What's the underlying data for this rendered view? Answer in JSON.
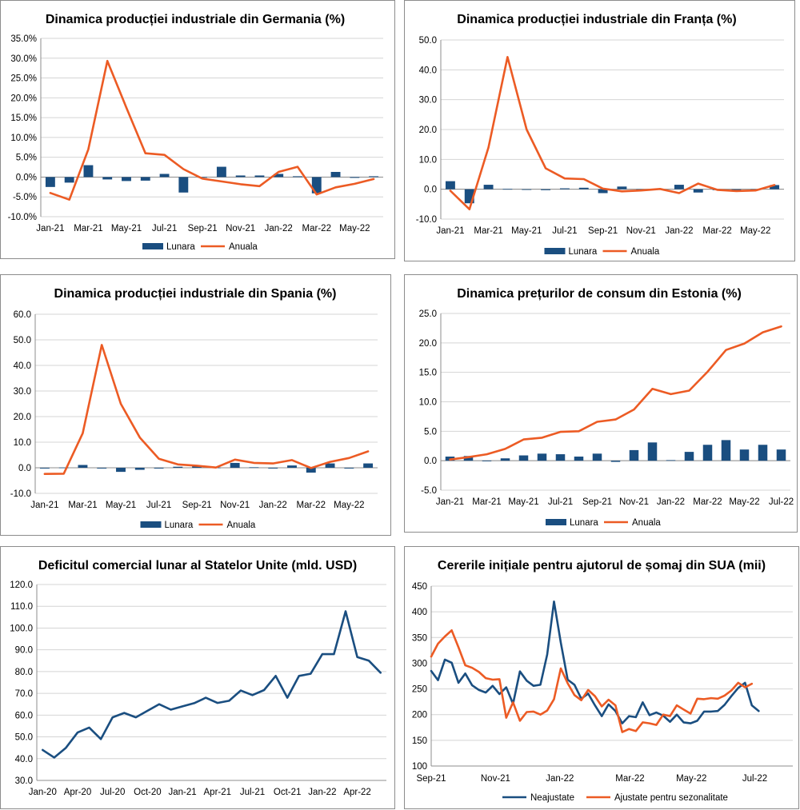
{
  "colors": {
    "lunara": "#1a4e80",
    "anuala": "#ec5b24",
    "grid": "#d4d4d4",
    "axis": "#8c8c8c",
    "text": "#000000"
  },
  "chart_data": [
    {
      "id": "germany",
      "type": "bar+line",
      "title": "Dinamica producției industriale din Germania (%)",
      "categories": [
        "Jan-21",
        "Feb-21",
        "Mar-21",
        "Apr-21",
        "May-21",
        "Jun-21",
        "Jul-21",
        "Aug-21",
        "Sep-21",
        "Oct-21",
        "Nov-21",
        "Dec-21",
        "Jan-22",
        "Feb-22",
        "Mar-22",
        "Apr-22",
        "May-22",
        "Jun-22"
      ],
      "xtick_labels": [
        "Jan-21",
        "",
        "Mar-21",
        "",
        "May-21",
        "",
        "Jul-21",
        "",
        "Sep-21",
        "",
        "Nov-21",
        "",
        "Jan-22",
        "",
        "Mar-22",
        "",
        "May-22",
        ""
      ],
      "series": [
        {
          "name": "Lunara",
          "kind": "bar",
          "values": [
            -2.5,
            -1.4,
            3.0,
            -0.6,
            -1.0,
            -0.9,
            0.8,
            -3.9,
            -0.1,
            2.6,
            0.4,
            0.4,
            0.8,
            0.2,
            -4.1,
            1.3,
            -0.2,
            0.2
          ]
        },
        {
          "name": "Anuala",
          "kind": "line",
          "values": [
            -4.0,
            -5.7,
            7.0,
            29.3,
            17.5,
            6.0,
            5.6,
            2.0,
            -0.4,
            -1.1,
            -1.8,
            -2.3,
            1.3,
            2.6,
            -4.4,
            -2.6,
            -1.7,
            -0.5
          ]
        }
      ],
      "ylim": [
        -10,
        35
      ],
      "yticks": [
        -10,
        -5,
        0,
        5,
        10,
        15,
        20,
        25,
        30,
        35
      ],
      "ytick_labels": [
        "-10.0%",
        "-5.0%",
        "0.0%",
        "5.0%",
        "10.0%",
        "15.0%",
        "20.0%",
        "25.0%",
        "30.0%",
        "35.0%"
      ],
      "legend": [
        "Lunara",
        "Anuala"
      ]
    },
    {
      "id": "france",
      "type": "bar+line",
      "title": "Dinamica producției industriale din Franța (%)",
      "categories": [
        "Jan-21",
        "Feb-21",
        "Mar-21",
        "Apr-21",
        "May-21",
        "Jun-21",
        "Jul-21",
        "Aug-21",
        "Sep-21",
        "Oct-21",
        "Nov-21",
        "Dec-21",
        "Jan-22",
        "Feb-22",
        "Mar-22",
        "Apr-22",
        "May-22",
        "Jun-22"
      ],
      "xtick_labels": [
        "Jan-21",
        "",
        "Mar-21",
        "",
        "May-21",
        "",
        "Jul-21",
        "",
        "Sep-21",
        "",
        "Nov-21",
        "",
        "Jan-22",
        "",
        "Mar-22",
        "",
        "May-22",
        ""
      ],
      "series": [
        {
          "name": "Lunara",
          "kind": "bar",
          "values": [
            2.7,
            -4.7,
            1.5,
            0.1,
            -0.1,
            -0.3,
            0.3,
            0.5,
            -1.3,
            0.9,
            -0.4,
            -0.1,
            1.5,
            -1.1,
            -0.3,
            -0.3,
            -0.2,
            1.4
          ]
        },
        {
          "name": "Anuala",
          "kind": "line",
          "values": [
            -0.5,
            -6.7,
            14.0,
            44.3,
            20.0,
            7.0,
            3.6,
            3.4,
            0.2,
            -0.7,
            -0.4,
            0.1,
            -1.3,
            1.9,
            -0.2,
            -0.6,
            -0.4,
            1.4
          ]
        }
      ],
      "ylim": [
        -10,
        50
      ],
      "yticks": [
        -10,
        0,
        10,
        20,
        30,
        40,
        50
      ],
      "ytick_labels": [
        "-10.0",
        "0.0",
        "10.0",
        "20.0",
        "30.0",
        "40.0",
        "50.0"
      ],
      "legend": [
        "Lunara",
        "Anuala"
      ]
    },
    {
      "id": "spain",
      "type": "bar+line",
      "title": "Dinamica producției industriale din Spania (%)",
      "categories": [
        "Jan-21",
        "Feb-21",
        "Mar-21",
        "Apr-21",
        "May-21",
        "Jun-21",
        "Jul-21",
        "Aug-21",
        "Sep-21",
        "Oct-21",
        "Nov-21",
        "Dec-21",
        "Jan-22",
        "Feb-22",
        "Mar-22",
        "Apr-22",
        "May-22",
        "Jun-22"
      ],
      "xtick_labels": [
        "Jan-21",
        "",
        "Mar-21",
        "",
        "May-21",
        "",
        "Jul-21",
        "",
        "Sep-21",
        "",
        "Nov-21",
        "",
        "Jan-22",
        "",
        "Mar-22",
        "",
        "May-22",
        ""
      ],
      "series": [
        {
          "name": "Lunara",
          "kind": "bar",
          "values": [
            -0.3,
            0.1,
            1.1,
            -0.3,
            -1.6,
            -0.8,
            -0.3,
            0.4,
            0.7,
            0.1,
            1.9,
            0.2,
            -0.3,
            0.9,
            -1.9,
            1.7,
            -0.3,
            1.7
          ]
        },
        {
          "name": "Anuala",
          "kind": "line",
          "values": [
            -2.4,
            -2.3,
            13.5,
            48.0,
            25.0,
            11.8,
            3.5,
            1.3,
            0.8,
            0.1,
            3.2,
            1.9,
            1.7,
            3.0,
            -0.1,
            2.3,
            3.8,
            6.4
          ]
        }
      ],
      "ylim": [
        -10,
        60
      ],
      "yticks": [
        -10,
        0,
        10,
        20,
        30,
        40,
        50,
        60
      ],
      "ytick_labels": [
        "-10.0",
        "0.0",
        "10.0",
        "20.0",
        "30.0",
        "40.0",
        "50.0",
        "60.0"
      ],
      "legend": [
        "Lunara",
        "Anuala"
      ]
    },
    {
      "id": "estonia",
      "type": "bar+line",
      "title": "Dinamica prețurilor de consum din Estonia (%)",
      "categories": [
        "Jan-21",
        "Feb-21",
        "Mar-21",
        "Apr-21",
        "May-21",
        "Jun-21",
        "Jul-21",
        "Aug-21",
        "Sep-21",
        "Oct-21",
        "Nov-21",
        "Dec-21",
        "Jan-22",
        "Feb-22",
        "Mar-22",
        "Apr-22",
        "May-22",
        "Jun-22",
        "Jul-22"
      ],
      "xtick_labels": [
        "Jan-21",
        "",
        "Mar-21",
        "",
        "May-21",
        "",
        "Jul-21",
        "",
        "Sep-21",
        "",
        "Nov-21",
        "",
        "Jan-22",
        "",
        "Mar-22",
        "",
        "May-22",
        "",
        "Jul-22"
      ],
      "series": [
        {
          "name": "Lunara",
          "kind": "bar",
          "values": [
            0.7,
            0.8,
            -0.1,
            0.4,
            0.9,
            1.2,
            1.1,
            0.7,
            1.2,
            -0.2,
            1.8,
            3.1,
            0.1,
            1.5,
            2.7,
            3.5,
            1.9,
            2.7,
            1.9
          ]
        },
        {
          "name": "Anuala",
          "kind": "line",
          "values": [
            0.2,
            0.6,
            1.1,
            2.0,
            3.6,
            3.9,
            4.9,
            5.0,
            6.6,
            7.0,
            8.7,
            12.2,
            11.3,
            11.9,
            15.1,
            18.8,
            19.9,
            21.8,
            22.8
          ]
        }
      ],
      "ylim": [
        -5,
        25
      ],
      "yticks": [
        -5,
        0,
        5,
        10,
        15,
        20,
        25
      ],
      "ytick_labels": [
        "-5.0",
        "0.0",
        "5.0",
        "10.0",
        "15.0",
        "20.0",
        "25.0"
      ],
      "legend": [
        "Lunara",
        "Anuala"
      ]
    },
    {
      "id": "us-trade",
      "type": "line",
      "title": "Deficitul comercial lunar al Statelor Unite (mld. USD)",
      "categories": [
        "Jan-20",
        "Feb-20",
        "Mar-20",
        "Apr-20",
        "May-20",
        "Jun-20",
        "Jul-20",
        "Aug-20",
        "Sep-20",
        "Oct-20",
        "Nov-20",
        "Dec-20",
        "Jan-21",
        "Feb-21",
        "Mar-21",
        "Apr-21",
        "May-21",
        "Jun-21",
        "Jul-21",
        "Aug-21",
        "Sep-21",
        "Oct-21",
        "Nov-21",
        "Dec-21",
        "Jan-22",
        "Feb-22",
        "Mar-22",
        "Apr-22",
        "May-22",
        "Jun-22"
      ],
      "xtick_labels": [
        "Jan-20",
        "",
        "",
        "Apr-20",
        "",
        "",
        "Jul-20",
        "",
        "",
        "Oct-20",
        "",
        "",
        "Jan-21",
        "",
        "",
        "Apr-21",
        "",
        "",
        "Jul-21",
        "",
        "",
        "Oct-21",
        "",
        "",
        "Jan-22",
        "",
        "",
        "Apr-22",
        "",
        ""
      ],
      "series": [
        {
          "name": "Deficit",
          "kind": "line",
          "values": [
            44.0,
            40.5,
            45.0,
            52.0,
            54.3,
            49.0,
            59.0,
            61.0,
            59.0,
            62.0,
            65.0,
            62.5,
            64.0,
            65.5,
            68.0,
            65.6,
            66.6,
            71.3,
            69.2,
            71.5,
            78.0,
            68.0,
            78.0,
            79.0,
            88.0,
            88.0,
            107.7,
            86.7,
            85.0,
            79.5
          ]
        }
      ],
      "ylim": [
        30,
        120
      ],
      "yticks": [
        30,
        40,
        50,
        60,
        70,
        80,
        90,
        100,
        110,
        120
      ],
      "ytick_labels": [
        "30.0",
        "40.0",
        "50.0",
        "60.0",
        "70.0",
        "80.0",
        "90.0",
        "100.0",
        "110.0",
        "120.0"
      ]
    },
    {
      "id": "us-claims",
      "type": "line",
      "title": "Cererile inițiale pentru ajutorul de șomaj din SUA (mii)",
      "x_range": [
        0,
        53
      ],
      "xtick_labels": [
        "Sep-21",
        "Nov-21",
        "Jan-22",
        "Mar-22",
        "May-22",
        "Jul-22"
      ],
      "xtick_positions": [
        0,
        9.43,
        18.86,
        29.14,
        38.14,
        47.43
      ],
      "series": [
        {
          "name": "Neajustate",
          "kind": "line",
          "values": [
            285,
            267,
            307,
            301,
            262,
            280,
            257,
            248,
            243,
            256,
            240,
            253,
            221,
            284,
            266,
            256,
            258,
            317,
            420,
            340,
            268,
            258,
            231,
            241,
            218,
            197,
            220,
            207,
            183,
            197,
            195,
            224,
            199,
            204,
            198,
            186,
            200,
            185,
            183,
            188,
            206,
            206,
            207,
            219,
            236,
            252,
            262,
            218,
            207
          ]
        },
        {
          "name": "Ajustate pentru sezonalitate",
          "kind": "line",
          "values": [
            313,
            338,
            352,
            364,
            331,
            296,
            291,
            283,
            271,
            268,
            269,
            194,
            224,
            188,
            205,
            206,
            200,
            208,
            230,
            290,
            261,
            238,
            228,
            248,
            236,
            216,
            229,
            218,
            166,
            172,
            168,
            185,
            183,
            180,
            200,
            197,
            218,
            210,
            202,
            231,
            230,
            232,
            231,
            237,
            247,
            262,
            253,
            260
          ]
        }
      ],
      "ylim": [
        100,
        450
      ],
      "yticks": [
        100,
        150,
        200,
        250,
        300,
        350,
        400,
        450
      ],
      "ytick_labels": [
        "100",
        "150",
        "200",
        "250",
        "300",
        "350",
        "400",
        "450"
      ],
      "legend": [
        "Neajustate",
        "Ajustate pentru sezonalitate"
      ]
    }
  ]
}
